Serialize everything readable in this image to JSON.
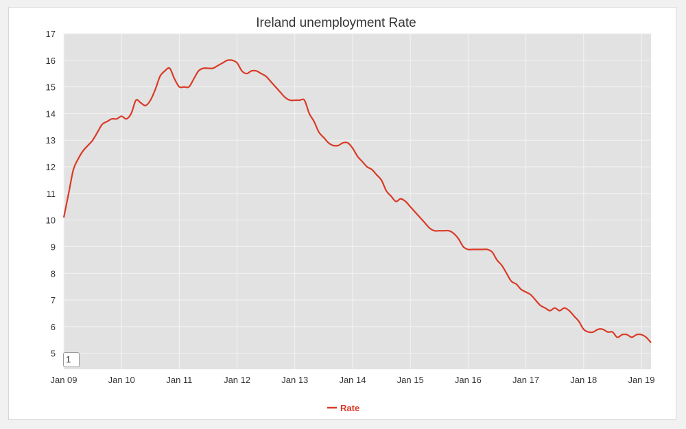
{
  "chart_data": {
    "type": "line",
    "title": "Ireland unemployment Rate",
    "xlabel": "",
    "ylabel": "",
    "ylim": [
      4.4,
      17
    ],
    "xlim": [
      "2009-01",
      "2019-03"
    ],
    "yticks": [
      5,
      6,
      7,
      8,
      9,
      10,
      11,
      12,
      13,
      14,
      15,
      16,
      17
    ],
    "xticks": [
      {
        "date": "2009-01",
        "label": "Jan 09"
      },
      {
        "date": "2010-01",
        "label": "Jan 10"
      },
      {
        "date": "2011-01",
        "label": "Jan 11"
      },
      {
        "date": "2012-01",
        "label": "Jan 12"
      },
      {
        "date": "2013-01",
        "label": "Jan 13"
      },
      {
        "date": "2014-01",
        "label": "Jan 14"
      },
      {
        "date": "2015-01",
        "label": "Jan 15"
      },
      {
        "date": "2016-01",
        "label": "Jan 16"
      },
      {
        "date": "2017-01",
        "label": "Jan 17"
      },
      {
        "date": "2018-01",
        "label": "Jan 18"
      },
      {
        "date": "2019-01",
        "label": "Jan 19"
      }
    ],
    "grid": true,
    "legend": "bottom-center",
    "colors": {
      "line": "#d93a26",
      "plot_background": "#e2e2e2",
      "grid": "#f4f4f4"
    },
    "series": [
      {
        "name": "Rate",
        "x": [
          "2009-01",
          "2009-02",
          "2009-03",
          "2009-04",
          "2009-05",
          "2009-06",
          "2009-07",
          "2009-08",
          "2009-09",
          "2009-10",
          "2009-11",
          "2009-12",
          "2010-01",
          "2010-02",
          "2010-03",
          "2010-04",
          "2010-05",
          "2010-06",
          "2010-07",
          "2010-08",
          "2010-09",
          "2010-10",
          "2010-11",
          "2010-12",
          "2011-01",
          "2011-02",
          "2011-03",
          "2011-04",
          "2011-05",
          "2011-06",
          "2011-07",
          "2011-08",
          "2011-09",
          "2011-10",
          "2011-11",
          "2011-12",
          "2012-01",
          "2012-02",
          "2012-03",
          "2012-04",
          "2012-05",
          "2012-06",
          "2012-07",
          "2012-08",
          "2012-09",
          "2012-10",
          "2012-11",
          "2012-12",
          "2013-01",
          "2013-02",
          "2013-03",
          "2013-04",
          "2013-05",
          "2013-06",
          "2013-07",
          "2013-08",
          "2013-09",
          "2013-10",
          "2013-11",
          "2013-12",
          "2014-01",
          "2014-02",
          "2014-03",
          "2014-04",
          "2014-05",
          "2014-06",
          "2014-07",
          "2014-08",
          "2014-09",
          "2014-10",
          "2014-11",
          "2014-12",
          "2015-01",
          "2015-02",
          "2015-03",
          "2015-04",
          "2015-05",
          "2015-06",
          "2015-07",
          "2015-08",
          "2015-09",
          "2015-10",
          "2015-11",
          "2015-12",
          "2016-01",
          "2016-02",
          "2016-03",
          "2016-04",
          "2016-05",
          "2016-06",
          "2016-07",
          "2016-08",
          "2016-09",
          "2016-10",
          "2016-11",
          "2016-12",
          "2017-01",
          "2017-02",
          "2017-03",
          "2017-04",
          "2017-05",
          "2017-06",
          "2017-07",
          "2017-08",
          "2017-09",
          "2017-10",
          "2017-11",
          "2017-12",
          "2018-01",
          "2018-02",
          "2018-03",
          "2018-04",
          "2018-05",
          "2018-06",
          "2018-07",
          "2018-08",
          "2018-09",
          "2018-10",
          "2018-11",
          "2018-12",
          "2019-01",
          "2019-02",
          "2019-03"
        ],
        "values": [
          10.1,
          11.0,
          11.9,
          12.3,
          12.6,
          12.8,
          13.0,
          13.3,
          13.6,
          13.7,
          13.8,
          13.8,
          13.9,
          13.8,
          14.0,
          14.5,
          14.4,
          14.3,
          14.5,
          14.9,
          15.4,
          15.6,
          15.7,
          15.3,
          15.0,
          15.0,
          15.0,
          15.3,
          15.6,
          15.7,
          15.7,
          15.7,
          15.8,
          15.9,
          16.0,
          16.0,
          15.9,
          15.6,
          15.5,
          15.6,
          15.6,
          15.5,
          15.4,
          15.2,
          15.0,
          14.8,
          14.6,
          14.5,
          14.5,
          14.5,
          14.5,
          14.0,
          13.7,
          13.3,
          13.1,
          12.9,
          12.8,
          12.8,
          12.9,
          12.9,
          12.7,
          12.4,
          12.2,
          12.0,
          11.9,
          11.7,
          11.5,
          11.1,
          10.9,
          10.7,
          10.8,
          10.7,
          10.5,
          10.3,
          10.1,
          9.9,
          9.7,
          9.6,
          9.6,
          9.6,
          9.6,
          9.5,
          9.3,
          9.0,
          8.9,
          8.9,
          8.9,
          8.9,
          8.9,
          8.8,
          8.5,
          8.3,
          8.0,
          7.7,
          7.6,
          7.4,
          7.3,
          7.2,
          7.0,
          6.8,
          6.7,
          6.6,
          6.7,
          6.6,
          6.7,
          6.6,
          6.4,
          6.2,
          5.9,
          5.8,
          5.8,
          5.9,
          5.9,
          5.8,
          5.8,
          5.6,
          5.7,
          5.7,
          5.6,
          5.7,
          5.7,
          5.6,
          5.4
        ]
      }
    ],
    "range_selector_value": "1"
  }
}
